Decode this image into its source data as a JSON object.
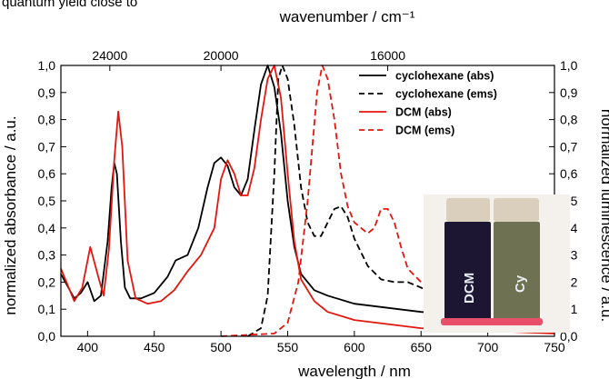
{
  "top_cut_text": "quantum yield close to",
  "chart_data": {
    "type": "line",
    "xlabel": "wavelength / nm",
    "x2label": "wavenumber / cm⁻¹",
    "ylabel": "normalized absorbance / a.u.",
    "y2label": "normalized luminescence / a.u.",
    "xlim": [
      380,
      750
    ],
    "ylim": [
      0,
      1
    ],
    "x_ticks": [
      "400",
      "450",
      "500",
      "550",
      "600",
      "650",
      "700",
      "750"
    ],
    "x2_ticks": [
      "24000",
      "20000",
      "16000"
    ],
    "y_ticks": [
      "0,0",
      "0,1",
      "0,2",
      "0,3",
      "0,4",
      "0,5",
      "0,6",
      "0,7",
      "0,8",
      "0,9",
      "1,0"
    ],
    "legend_position": "top-right",
    "grid": false,
    "series": [
      {
        "name": "cyclohexane (abs)",
        "color": "#000000",
        "style": "solid",
        "points": [
          [
            380,
            0.23
          ],
          [
            390,
            0.14
          ],
          [
            395,
            0.16
          ],
          [
            400,
            0.2
          ],
          [
            405,
            0.13
          ],
          [
            410,
            0.15
          ],
          [
            415,
            0.35
          ],
          [
            418,
            0.55
          ],
          [
            420,
            0.64
          ],
          [
            422,
            0.6
          ],
          [
            425,
            0.35
          ],
          [
            428,
            0.18
          ],
          [
            432,
            0.14
          ],
          [
            440,
            0.14
          ],
          [
            450,
            0.16
          ],
          [
            460,
            0.22
          ],
          [
            466,
            0.28
          ],
          [
            475,
            0.3
          ],
          [
            483,
            0.4
          ],
          [
            490,
            0.55
          ],
          [
            495,
            0.64
          ],
          [
            500,
            0.66
          ],
          [
            505,
            0.63
          ],
          [
            510,
            0.55
          ],
          [
            515,
            0.52
          ],
          [
            520,
            0.58
          ],
          [
            525,
            0.76
          ],
          [
            530,
            0.93
          ],
          [
            535,
            1.0
          ],
          [
            540,
            0.92
          ],
          [
            545,
            0.75
          ],
          [
            550,
            0.5
          ],
          [
            555,
            0.33
          ],
          [
            560,
            0.23
          ],
          [
            570,
            0.17
          ],
          [
            580,
            0.15
          ],
          [
            600,
            0.12
          ],
          [
            650,
            0.09
          ],
          [
            700,
            0.07
          ],
          [
            750,
            0.05
          ]
        ]
      },
      {
        "name": "cyclohexane (ems)",
        "color": "#000000",
        "style": "dashed",
        "points": [
          [
            520,
            0.0
          ],
          [
            530,
            0.03
          ],
          [
            535,
            0.15
          ],
          [
            540,
            0.6
          ],
          [
            543,
            0.95
          ],
          [
            546,
            1.0
          ],
          [
            550,
            0.95
          ],
          [
            555,
            0.78
          ],
          [
            560,
            0.55
          ],
          [
            565,
            0.42
          ],
          [
            570,
            0.37
          ],
          [
            575,
            0.37
          ],
          [
            580,
            0.42
          ],
          [
            585,
            0.47
          ],
          [
            590,
            0.48
          ],
          [
            595,
            0.44
          ],
          [
            600,
            0.36
          ],
          [
            610,
            0.26
          ],
          [
            620,
            0.21
          ],
          [
            630,
            0.2
          ],
          [
            640,
            0.2
          ],
          [
            650,
            0.18
          ],
          [
            660,
            0.15
          ],
          [
            680,
            0.12
          ],
          [
            700,
            0.1
          ],
          [
            750,
            0.06
          ]
        ]
      },
      {
        "name": "DCM (abs)",
        "color": "#e3170d",
        "style": "solid",
        "points": [
          [
            380,
            0.25
          ],
          [
            390,
            0.13
          ],
          [
            396,
            0.18
          ],
          [
            402,
            0.33
          ],
          [
            408,
            0.22
          ],
          [
            412,
            0.15
          ],
          [
            416,
            0.32
          ],
          [
            420,
            0.65
          ],
          [
            423,
            0.83
          ],
          [
            426,
            0.7
          ],
          [
            430,
            0.28
          ],
          [
            436,
            0.14
          ],
          [
            445,
            0.12
          ],
          [
            455,
            0.13
          ],
          [
            465,
            0.17
          ],
          [
            475,
            0.24
          ],
          [
            485,
            0.3
          ],
          [
            495,
            0.4
          ],
          [
            500,
            0.58
          ],
          [
            505,
            0.65
          ],
          [
            510,
            0.6
          ],
          [
            515,
            0.52
          ],
          [
            520,
            0.52
          ],
          [
            525,
            0.62
          ],
          [
            530,
            0.8
          ],
          [
            535,
            0.95
          ],
          [
            540,
            1.0
          ],
          [
            545,
            0.88
          ],
          [
            550,
            0.6
          ],
          [
            555,
            0.35
          ],
          [
            560,
            0.21
          ],
          [
            570,
            0.13
          ],
          [
            580,
            0.09
          ],
          [
            600,
            0.06
          ],
          [
            650,
            0.03
          ],
          [
            700,
            0.02
          ],
          [
            750,
            0.01
          ]
        ]
      },
      {
        "name": "DCM (ems)",
        "color": "#e3170d",
        "style": "dashed",
        "points": [
          [
            500,
            0.0
          ],
          [
            540,
            0.01
          ],
          [
            550,
            0.05
          ],
          [
            558,
            0.2
          ],
          [
            565,
            0.5
          ],
          [
            572,
            0.9
          ],
          [
            576,
            1.0
          ],
          [
            580,
            0.95
          ],
          [
            585,
            0.8
          ],
          [
            590,
            0.6
          ],
          [
            595,
            0.48
          ],
          [
            600,
            0.42
          ],
          [
            605,
            0.4
          ],
          [
            610,
            0.38
          ],
          [
            615,
            0.4
          ],
          [
            620,
            0.47
          ],
          [
            625,
            0.47
          ],
          [
            630,
            0.42
          ],
          [
            635,
            0.33
          ],
          [
            640,
            0.25
          ],
          [
            650,
            0.2
          ],
          [
            660,
            0.17
          ],
          [
            670,
            0.15
          ],
          [
            690,
            0.13
          ],
          [
            720,
            0.11
          ],
          [
            750,
            0.1
          ]
        ]
      }
    ]
  },
  "inset_photo": {
    "vial_left_label": "DCM",
    "vial_right_label": "Cy",
    "colors": {
      "cap": "#d9cfbc",
      "left_liquid": "#1c1633",
      "right_liquid": "#6f7252",
      "glow": "#e8506a"
    }
  }
}
